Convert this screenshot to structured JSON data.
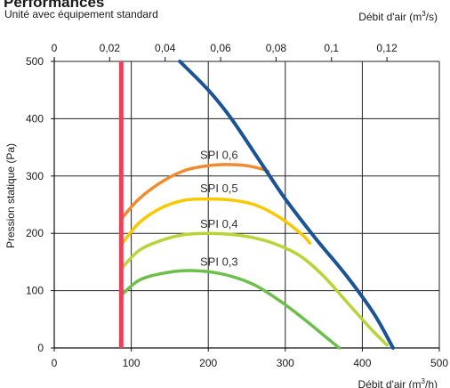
{
  "title": "Performances",
  "subtitle": "Unité avec équipement standard",
  "chart_data": {
    "type": "line",
    "title": "Performances",
    "subtitle": "Unité avec équipement standard",
    "xlabel": "Débit d'air (m³/h)",
    "xlabel_main": "Débit d'air (m",
    "xlabel_sup": "3",
    "xlabel_end": "/h)",
    "x2label": "Débit d'air (m³/s)",
    "x2label_main": "Débit d'air (m",
    "x2label_sup": "3",
    "x2label_end": "/s)",
    "ylabel": "Pression statique (Pa)",
    "xlim": [
      0,
      500
    ],
    "ylim": [
      0,
      500
    ],
    "x_ticks": [
      "0",
      "100",
      "200",
      "300",
      "400",
      "500"
    ],
    "x_tick_values": [
      0,
      100,
      200,
      300,
      400,
      500
    ],
    "y_ticks": [
      "0",
      "100",
      "200",
      "300",
      "400",
      "500"
    ],
    "y_tick_values": [
      0,
      100,
      200,
      300,
      400,
      500
    ],
    "x2_ticks": [
      "0",
      "0,02",
      "0,04",
      "0,06",
      "0,08",
      "0,1",
      "0,12"
    ],
    "x2_tick_values": [
      0,
      0.02,
      0.04,
      0.06,
      0.08,
      0.1,
      0.12
    ],
    "grid": true,
    "vertical_marker": {
      "x": 87,
      "color": "#e8435a"
    },
    "fan_curve": {
      "color": "#1a5496",
      "x": [
        163,
        200,
        230,
        265,
        300,
        340,
        380,
        415,
        440
      ],
      "y": [
        500,
        450,
        400,
        330,
        260,
        190,
        125,
        60,
        0
      ]
    },
    "series": [
      {
        "name": "SPI 0,6",
        "color": "#f28a30",
        "x": [
          87,
          110,
          140,
          170,
          200,
          225,
          250,
          270,
          278
        ],
        "y": [
          225,
          260,
          290,
          310,
          318,
          320,
          318,
          312,
          308
        ]
      },
      {
        "name": "SPI 0,5",
        "color": "#fac800",
        "x": [
          87,
          110,
          140,
          170,
          200,
          230,
          260,
          290,
          320,
          332
        ],
        "y": [
          180,
          218,
          245,
          258,
          260,
          258,
          250,
          230,
          200,
          183
        ]
      },
      {
        "name": "SPI 0,4",
        "color": "#b8d438",
        "x": [
          87,
          110,
          140,
          170,
          200,
          230,
          260,
          290,
          320,
          350,
          380,
          410,
          432
        ],
        "y": [
          138,
          170,
          188,
          198,
          200,
          198,
          192,
          180,
          160,
          125,
          80,
          35,
          5
        ]
      },
      {
        "name": "SPI 0,3",
        "color": "#6cbf4a",
        "x": [
          87,
          110,
          140,
          170,
          200,
          230,
          260,
          290,
          320,
          350,
          370
        ],
        "y": [
          92,
          118,
          130,
          135,
          133,
          125,
          110,
          85,
          55,
          22,
          0
        ]
      }
    ],
    "spi_labels": [
      {
        "text": "SPI 0,6",
        "x": 214,
        "y": 330
      },
      {
        "text": "SPI 0,5",
        "x": 214,
        "y": 272
      },
      {
        "text": "SPI 0,4",
        "x": 214,
        "y": 210
      },
      {
        "text": "SPI 0,3",
        "x": 214,
        "y": 144
      }
    ]
  }
}
